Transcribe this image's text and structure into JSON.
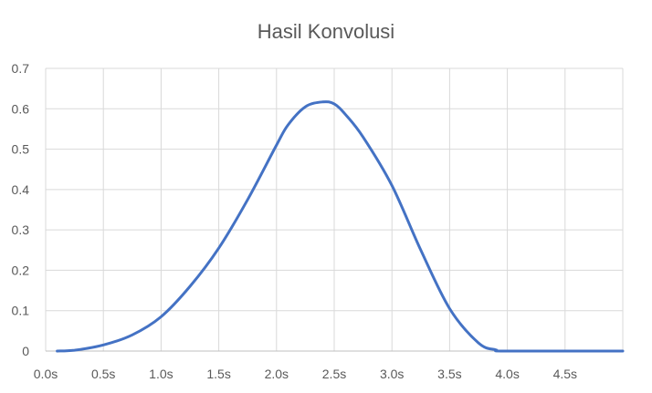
{
  "chart_data": {
    "type": "line",
    "title": "Hasil Konvolusi",
    "xlabel": "",
    "ylabel": "",
    "x_ticks": [
      "0.0s",
      "0.5s",
      "1.0s",
      "1.5s",
      "2.0s",
      "2.5s",
      "3.0s",
      "3.5s",
      "4.0s",
      "4.5s"
    ],
    "x_tick_values": [
      0,
      0.5,
      1.0,
      1.5,
      2.0,
      2.5,
      3.0,
      3.5,
      4.0,
      4.5
    ],
    "y_ticks": [
      "0",
      "0.1",
      "0.2",
      "0.3",
      "0.4",
      "0.5",
      "0.6",
      "0.7"
    ],
    "y_tick_values": [
      0,
      0.1,
      0.2,
      0.3,
      0.4,
      0.5,
      0.6,
      0.7
    ],
    "xlim": [
      0,
      5
    ],
    "ylim": [
      0,
      0.7
    ],
    "grid": true,
    "legend": "none",
    "color": "#4472C4",
    "series": [
      {
        "x": [
          0.1,
          0.25,
          0.5,
          0.75,
          1.0,
          1.25,
          1.5,
          1.75,
          2.0,
          2.1,
          2.25,
          2.4,
          2.5,
          2.6,
          2.75,
          3.0,
          3.25,
          3.5,
          3.75,
          3.9,
          4.0,
          5.0
        ],
        "y": [
          0.0,
          0.002,
          0.015,
          0.04,
          0.085,
          0.16,
          0.255,
          0.375,
          0.51,
          0.56,
          0.605,
          0.617,
          0.612,
          0.585,
          0.53,
          0.41,
          0.25,
          0.105,
          0.02,
          0.003,
          0.0,
          0.0
        ]
      }
    ]
  }
}
